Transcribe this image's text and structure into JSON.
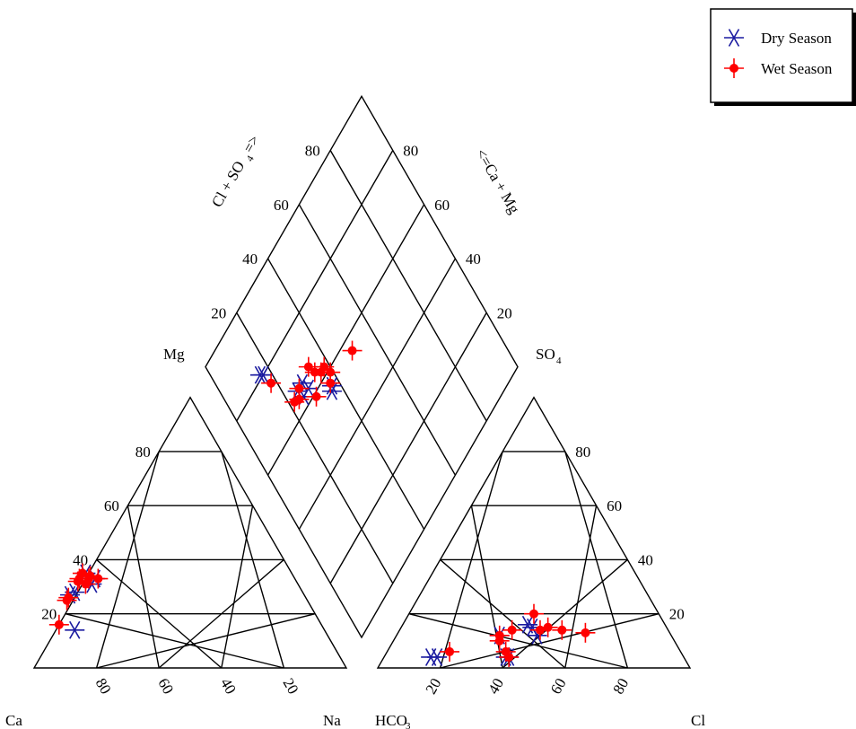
{
  "chart_data": {
    "type": "scatter",
    "title": "",
    "legend": {
      "position": "top-right",
      "entries": [
        {
          "label": "Dry Season",
          "marker": "asterisk",
          "color": "#1a1aa0"
        },
        {
          "label": "Wet Season",
          "marker": "filled-circle-cross",
          "color": "#ff0000"
        }
      ]
    },
    "cation_triangle": {
      "corners": {
        "left": "Ca",
        "right": "Na",
        "top": "Mg"
      },
      "mg_ticks": [
        "20",
        "40",
        "60",
        "80"
      ],
      "ca_ticks": [
        "80",
        "60",
        "40",
        "20"
      ],
      "grid": true
    },
    "anion_triangle": {
      "corners": {
        "left": "HCO",
        "left_sub": "3",
        "right": "Cl",
        "top": "SO",
        "top_sub": "4"
      },
      "so4_ticks": [
        "20",
        "40",
        "60",
        "80"
      ],
      "cl_ticks": [
        "20",
        "40",
        "60",
        "80"
      ],
      "grid": true
    },
    "diamond": {
      "left_axis_label": "Cl + SO",
      "left_axis_sub": "4",
      "left_axis_suffix": "=>",
      "right_axis_label": "<=Ca + Mg",
      "left_ticks": [
        "20",
        "40",
        "60",
        "80"
      ],
      "right_ticks": [
        "20",
        "40",
        "60",
        "80"
      ],
      "grid": true
    },
    "series": [
      {
        "name": "Dry Season",
        "cation_points": [
          {
            "ca": 80,
            "mg": 14
          },
          {
            "ca": 66,
            "mg": 31
          },
          {
            "ca": 64,
            "mg": 33
          },
          {
            "ca": 66,
            "mg": 35
          },
          {
            "ca": 73,
            "mg": 28
          },
          {
            "ca": 75,
            "mg": 27
          }
        ],
        "anion_points": [
          {
            "cl": 15,
            "so4": 4
          },
          {
            "cl": 17,
            "so4": 4
          },
          {
            "cl": 33,
            "so4": 12
          },
          {
            "cl": 40,
            "so4": 16
          },
          {
            "cl": 45,
            "so4": 12
          },
          {
            "cl": 40,
            "so4": 4
          },
          {
            "cl": 39,
            "so4": 4
          },
          {
            "cl": 42,
            "so4": 15
          }
        ],
        "diamond_points": [
          {
            "clso4": 16,
            "camg": 81
          },
          {
            "clso4": 17,
            "camg": 80
          },
          {
            "clso4": 37,
            "camg": 56
          },
          {
            "clso4": 36,
            "camg": 55
          },
          {
            "clso4": 28,
            "camg": 66
          },
          {
            "clso4": 26,
            "camg": 63
          },
          {
            "clso4": 25,
            "camg": 66
          },
          {
            "clso4": 29,
            "camg": 63
          }
        ]
      },
      {
        "name": "Wet Season",
        "cation_points": [
          {
            "ca": 84,
            "mg": 16
          },
          {
            "ca": 76,
            "mg": 26
          },
          {
            "ca": 77,
            "mg": 25
          },
          {
            "ca": 70,
            "mg": 32
          },
          {
            "ca": 69,
            "mg": 33
          },
          {
            "ca": 67,
            "mg": 35
          },
          {
            "ca": 65,
            "mg": 34
          },
          {
            "ca": 66,
            "mg": 33
          },
          {
            "ca": 63,
            "mg": 33
          },
          {
            "ca": 68,
            "mg": 31
          }
        ],
        "anion_points": [
          {
            "cl": 20,
            "so4": 6
          },
          {
            "cl": 33,
            "so4": 12
          },
          {
            "cl": 36,
            "so4": 14
          },
          {
            "cl": 40,
            "so4": 20
          },
          {
            "cl": 45,
            "so4": 14
          },
          {
            "cl": 47,
            "so4": 15
          },
          {
            "cl": 52,
            "so4": 14
          },
          {
            "cl": 38,
            "so4": 6
          },
          {
            "cl": 40,
            "so4": 4
          },
          {
            "cl": 34,
            "so4": 10
          },
          {
            "cl": 60,
            "so4": 13
          }
        ],
        "diamond_points": [
          {
            "clso4": 18,
            "camg": 76
          },
          {
            "clso4": 38,
            "camg": 62
          },
          {
            "clso4": 39,
            "camg": 59
          },
          {
            "clso4": 37,
            "camg": 57
          },
          {
            "clso4": 36,
            "camg": 62
          },
          {
            "clso4": 34,
            "camg": 64
          },
          {
            "clso4": 33,
            "camg": 67
          },
          {
            "clso4": 30,
            "camg": 59
          },
          {
            "clso4": 24,
            "camg": 64
          },
          {
            "clso4": 22,
            "camg": 65
          },
          {
            "clso4": 26,
            "camg": 66
          },
          {
            "clso4": 50,
            "camg": 56
          }
        ]
      }
    ]
  }
}
